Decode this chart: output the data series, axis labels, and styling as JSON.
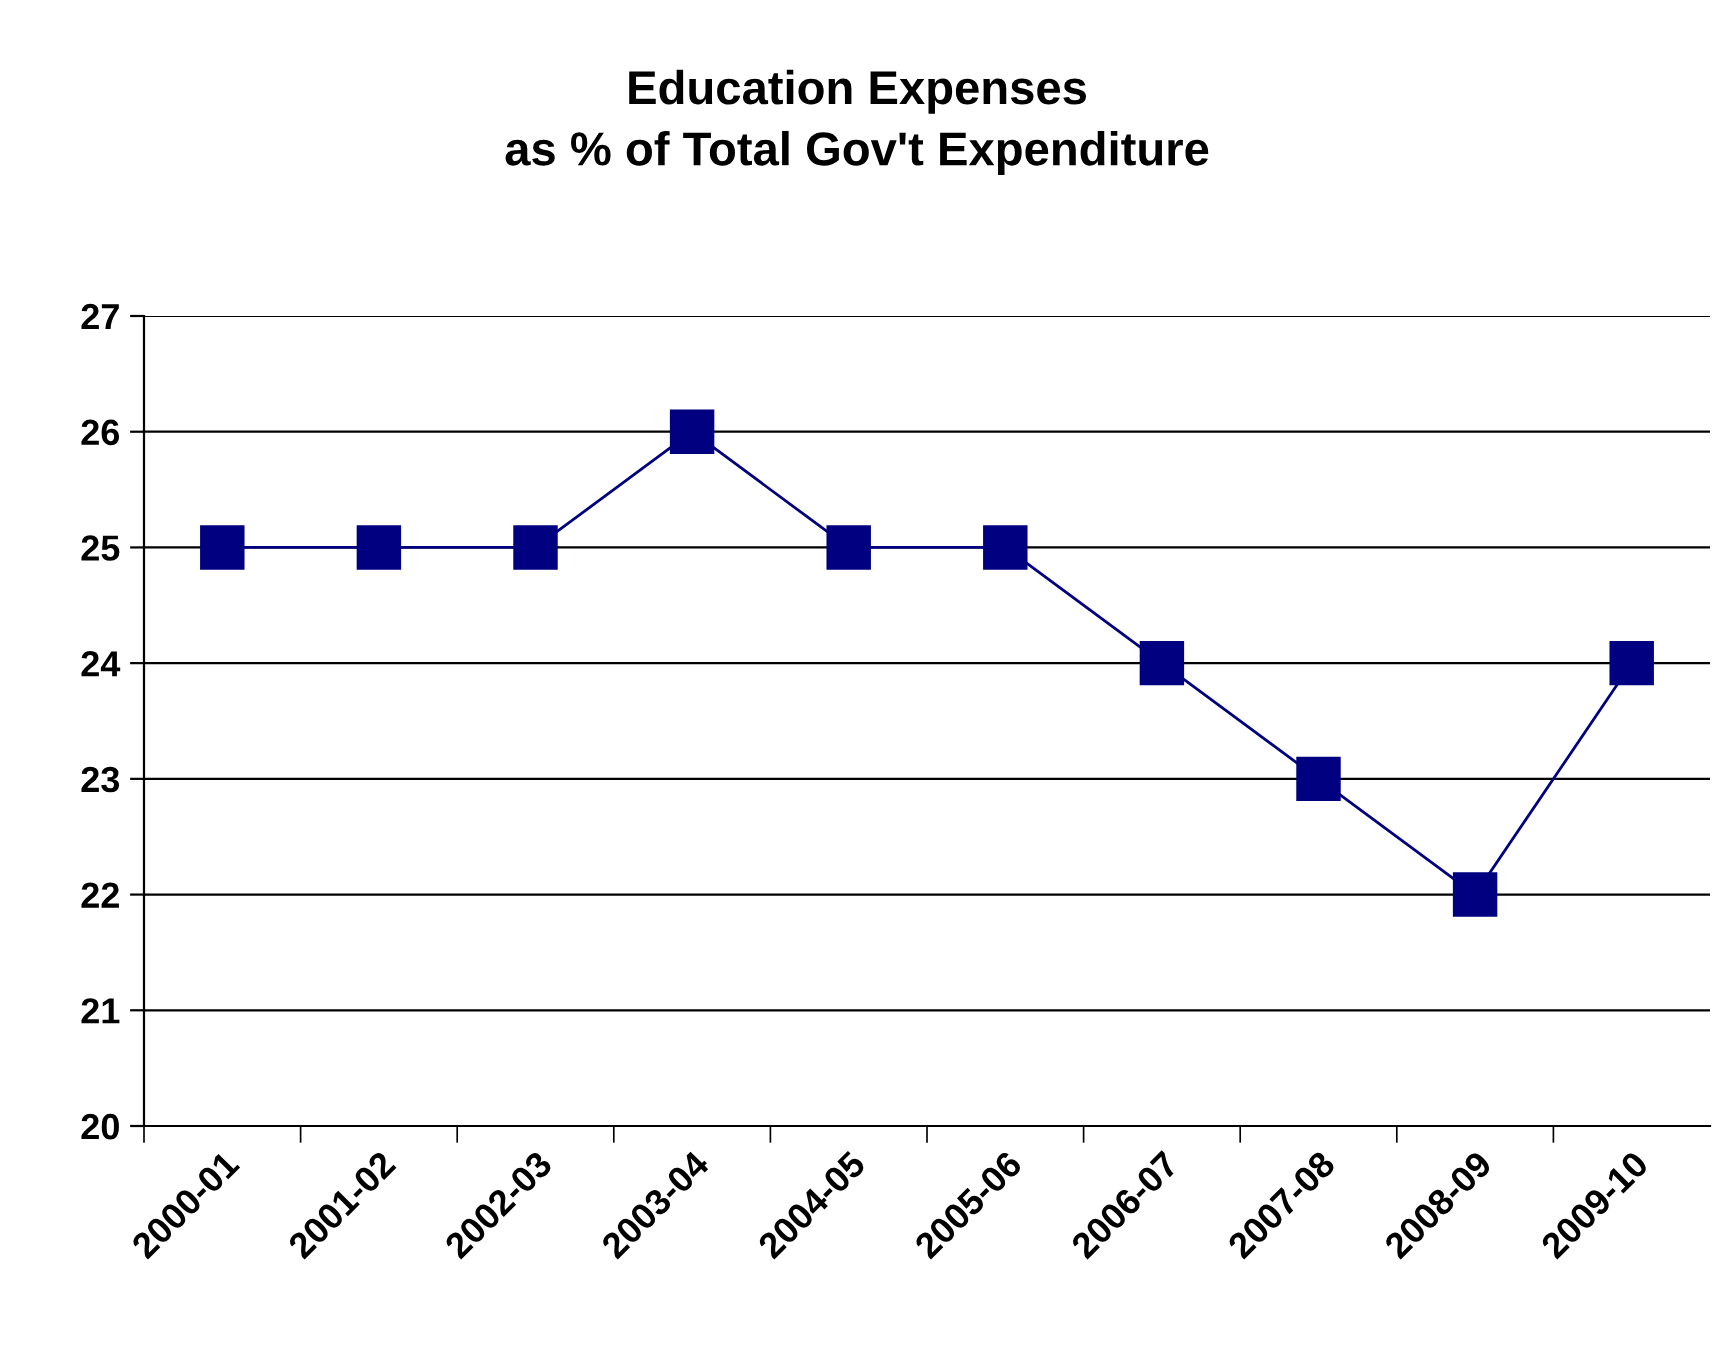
{
  "chart_data": {
    "type": "line",
    "title": "Education Expenses\nas % of Total Gov't Expenditure",
    "categories": [
      "2000-01",
      "2001-02",
      "2002-03",
      "2003-04",
      "2004-05",
      "2005-06",
      "2006-07",
      "2007-08",
      "2008-09",
      "2009-10"
    ],
    "series": [
      {
        "color": "#000080",
        "values": [
          25,
          25,
          25,
          26,
          25,
          25,
          24,
          23,
          22,
          24
        ]
      }
    ],
    "ylim": [
      20,
      27
    ],
    "yticks": [
      20,
      21,
      22,
      23,
      24,
      25,
      26,
      27
    ],
    "grid": "y",
    "marker": "square",
    "line_style": "solid",
    "legend": false
  }
}
